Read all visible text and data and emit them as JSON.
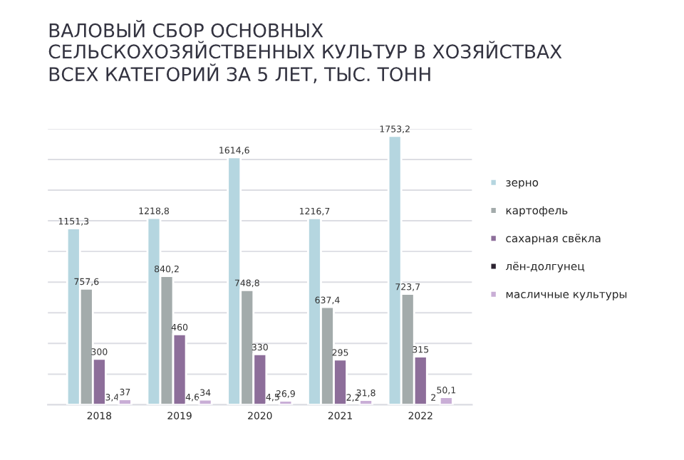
{
  "chart_data": {
    "type": "bar",
    "title": "ВАЛОВЫЙ СБОР ОСНОВНЫХ\nСЕЛЬСКОХОЗЯЙСТВЕННЫХ КУЛЬТУР В ХОЗЯЙСТВАХ\nВСЕХ КАТЕГОРИЙ ЗА 5 ЛЕТ, ТЫС. ТОНН",
    "categories": [
      "2018",
      "2019",
      "2020",
      "2021",
      "2022"
    ],
    "series": [
      {
        "name": "зерно",
        "color": "#b5d6e0",
        "values": [
          1151.3,
          1218.8,
          1614.6,
          1216.7,
          1753.2
        ],
        "value_labels": [
          "1151,3",
          "1218,8",
          "1614,6",
          "1216,7",
          "1753,2"
        ]
      },
      {
        "name": "картофель",
        "color": "#a3abab",
        "values": [
          757.6,
          840.2,
          748.8,
          637.4,
          723.7
        ],
        "value_labels": [
          "757,6",
          "840,2",
          "748,8",
          "637,4",
          "723,7"
        ]
      },
      {
        "name": "сахарная свёкла",
        "color": "#8d6e9a",
        "values": [
          300,
          460,
          330,
          295,
          315
        ],
        "value_labels": [
          "300",
          "460",
          "330",
          "295",
          "315"
        ]
      },
      {
        "name": "лён-долгунец",
        "color": "#2b2230",
        "values": [
          3.4,
          4.6,
          4.5,
          2.2,
          2
        ],
        "value_labels": [
          "3,4",
          "4,6",
          "4,5",
          "2,2",
          "2"
        ]
      },
      {
        "name": "масличные культуры",
        "color": "#c9aed6",
        "values": [
          37,
          34,
          26.9,
          31.8,
          50.1
        ],
        "value_labels": [
          "37",
          "34",
          "26,9",
          "31,8",
          "50,1"
        ]
      }
    ],
    "ylim": [
      0,
      1800
    ],
    "yticks": [
      {
        "value": 0,
        "label": null
      },
      {
        "value": 200,
        "label": null
      },
      {
        "value": 400,
        "label": null
      },
      {
        "value": 600,
        "label": null
      },
      {
        "value": 800,
        "label": null
      },
      {
        "value": 1000,
        "label": null
      },
      {
        "value": 1200,
        "label": null
      },
      {
        "value": 1400,
        "label": null
      },
      {
        "value": 1600,
        "label": null
      },
      {
        "value": 1800,
        "label": null
      }
    ],
    "tick_labels": "x",
    "grid": "y",
    "legend": "right"
  }
}
